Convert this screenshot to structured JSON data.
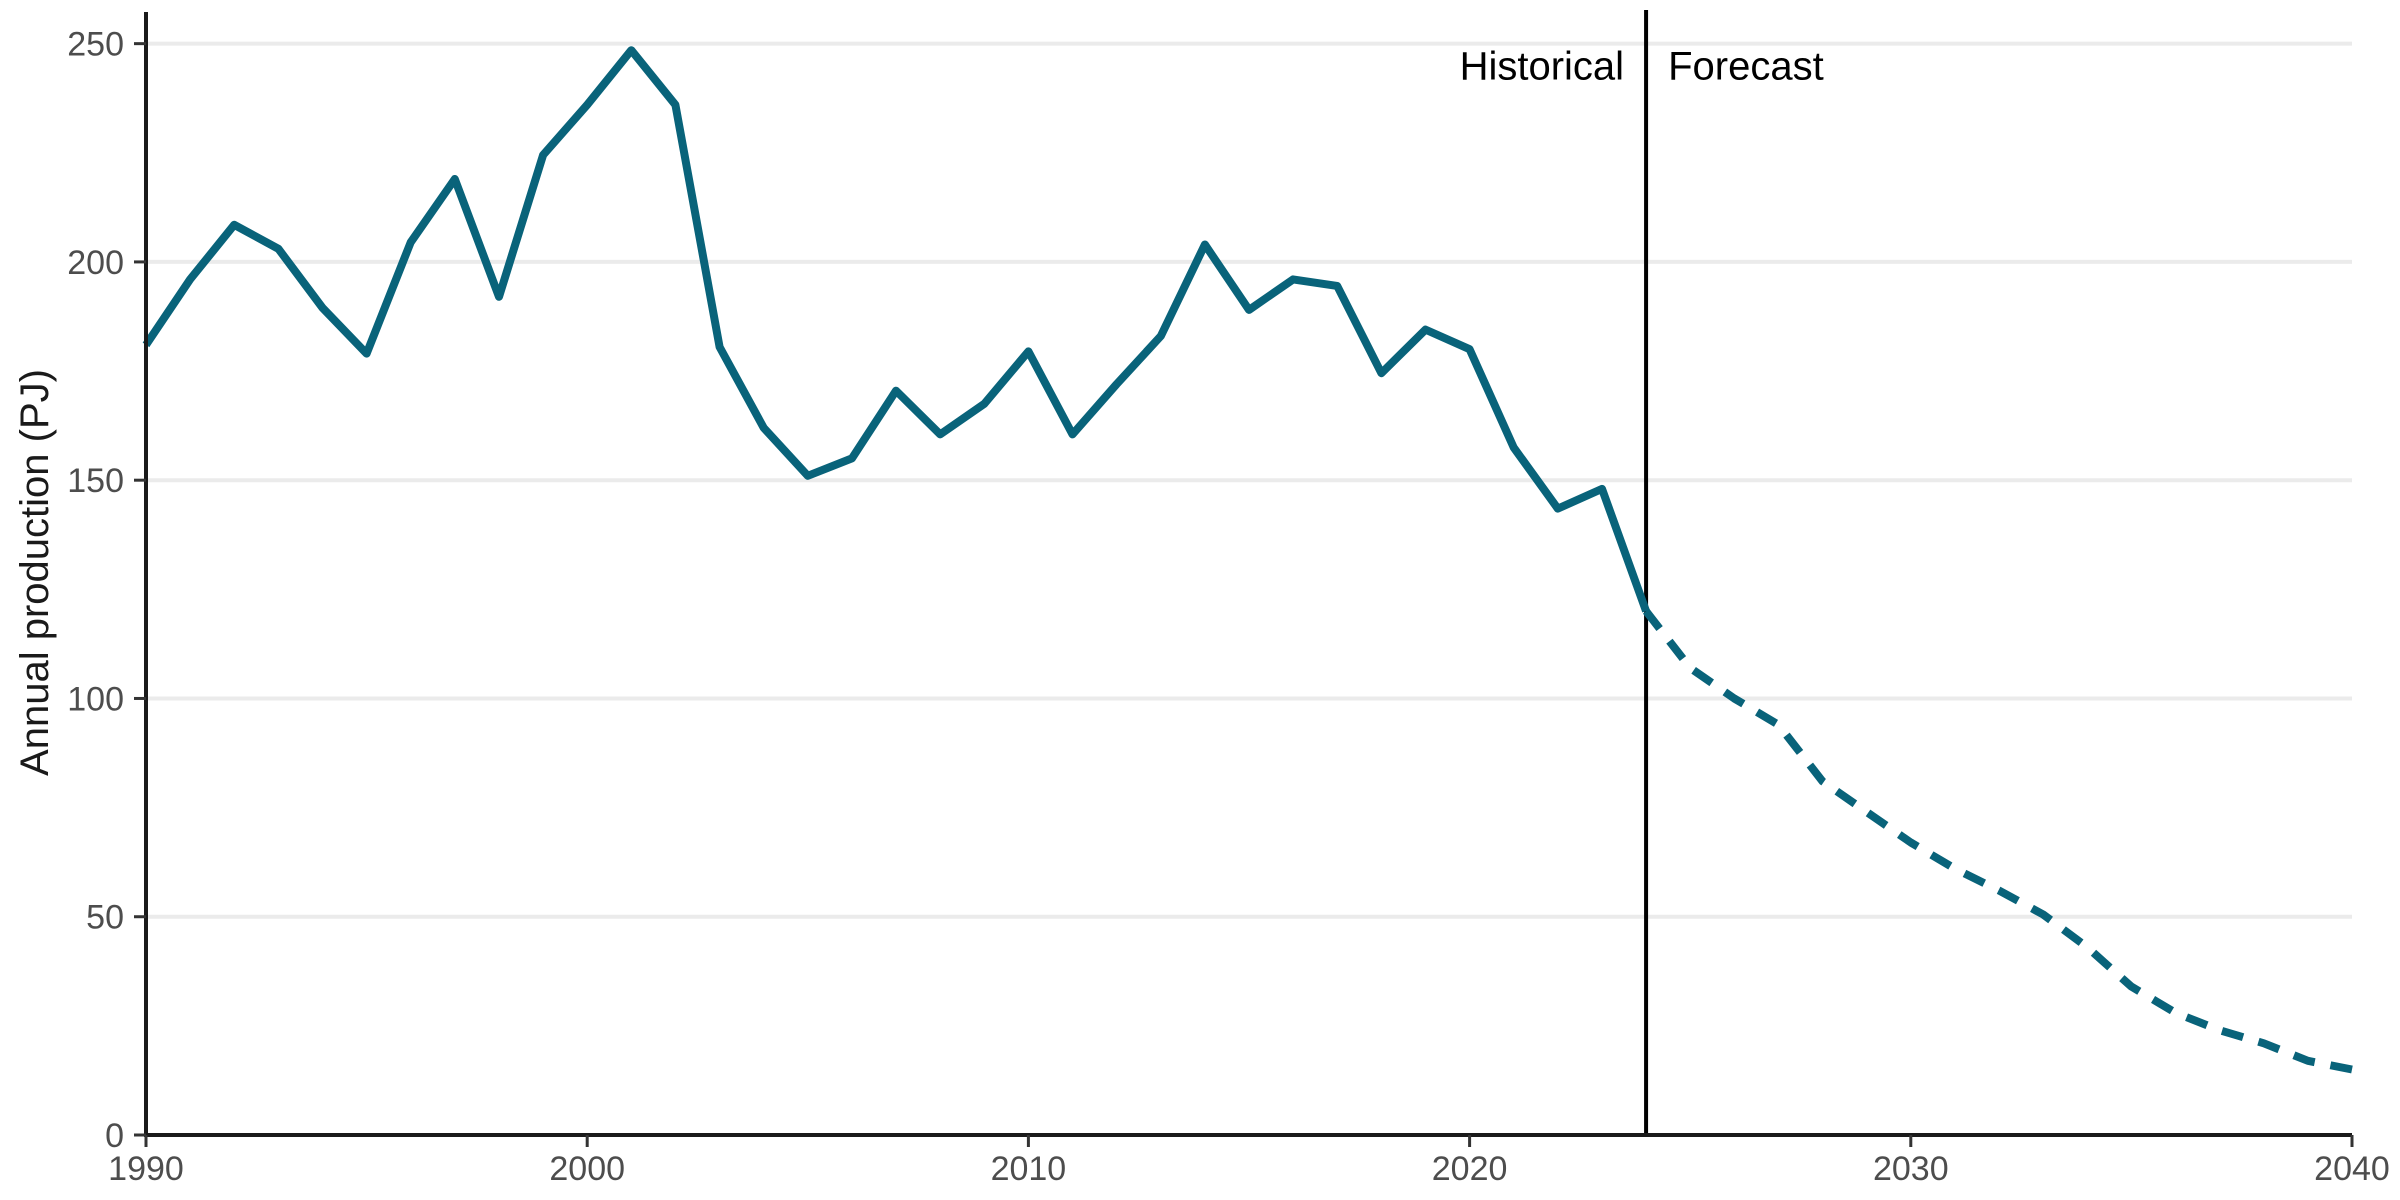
{
  "chart_data": {
    "type": "line",
    "title": "",
    "xlabel": "",
    "ylabel": "Annual production (PJ)",
    "xlim": [
      1990,
      2040
    ],
    "ylim": [
      0,
      260
    ],
    "x_ticks": [
      1990,
      2000,
      2010,
      2020,
      2030,
      2040
    ],
    "y_ticks": [
      0,
      50,
      100,
      150,
      200,
      250
    ],
    "grid": "horizontal major",
    "legend": "none",
    "line_color": "#09637a",
    "divider_x": 2024,
    "annotations": [
      {
        "text": "Historical",
        "x": 2024,
        "y": 245,
        "anchor": "end"
      },
      {
        "text": "Forecast",
        "x": 2024,
        "y": 245,
        "anchor": "start"
      }
    ],
    "series": [
      {
        "style": "solid",
        "x": [
          1990,
          1991,
          1992,
          1993,
          1994,
          1995,
          1996,
          1997,
          1998,
          1999,
          2000,
          2001,
          2002,
          2003,
          2004,
          2005,
          2006,
          2007,
          2008,
          2009,
          2010,
          2011,
          2012,
          2013,
          2014,
          2015,
          2016,
          2017,
          2018,
          2019,
          2020,
          2021,
          2022,
          2023,
          2024
        ],
        "values": [
          181,
          196,
          208.5,
          203,
          189.5,
          179,
          204.5,
          219,
          192,
          224.5,
          236,
          248.5,
          236,
          180.5,
          162,
          151,
          155,
          170.5,
          160.5,
          167.5,
          179.5,
          160.5,
          172,
          183,
          204,
          189,
          196,
          194.5,
          174.5,
          184.5,
          180,
          157.5,
          143.5,
          148,
          120
        ]
      },
      {
        "style": "dashed",
        "x": [
          2024,
          2025,
          2026,
          2027,
          2028,
          2029,
          2030,
          2031,
          2032,
          2033,
          2034,
          2035,
          2036,
          2037,
          2038,
          2039,
          2040
        ],
        "values": [
          120,
          107,
          100,
          94,
          81,
          74,
          67,
          61,
          56,
          50.5,
          43,
          34,
          28,
          24,
          21,
          17,
          15
        ]
      }
    ]
  }
}
